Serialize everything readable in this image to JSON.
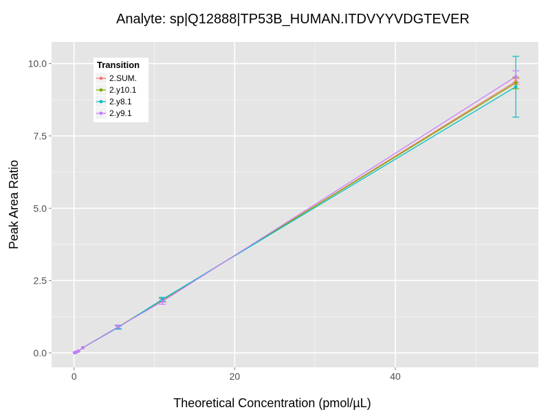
{
  "chart_data": {
    "type": "line",
    "title": "Analyte: sp|Q12888|TP53B_HUMAN.ITDVYYVDGTEVER",
    "xlabel": "Theoretical Concentration (pmol/µL)",
    "ylabel": "Peak Area Ratio",
    "xlim": [
      -2.8,
      57.8
    ],
    "ylim": [
      -0.5,
      10.75
    ],
    "x_ticks": [
      0,
      20,
      40
    ],
    "x_tick_labels": [
      "0",
      "20",
      "40"
    ],
    "y_ticks": [
      0,
      2.5,
      5,
      7.5,
      10
    ],
    "y_tick_labels": [
      "0.0",
      "2.5",
      "5.0",
      "7.5",
      "10.0"
    ],
    "grid": true,
    "legend": {
      "title": "Transition",
      "position": "top-left",
      "entries": [
        "2.SUM.",
        "2.y10.1",
        "2.y8.1",
        "2.y9.1"
      ]
    },
    "x": [
      0.055,
      0.11,
      0.275,
      0.55,
      1.1,
      5.5,
      11,
      55
    ],
    "series": [
      {
        "name": "2.SUM.",
        "color": "#F8766D",
        "values": [
          0.005,
          0.01,
          0.03,
          0.06,
          0.18,
          0.9,
          1.82,
          9.38
        ],
        "errors": [
          0.003,
          0.005,
          0.01,
          0.02,
          0.04,
          0.06,
          0.06,
          0.1
        ]
      },
      {
        "name": "2.y10.1",
        "color": "#7CAE00",
        "values": [
          0.005,
          0.01,
          0.03,
          0.06,
          0.18,
          0.9,
          1.83,
          9.33
        ],
        "errors": [
          0.003,
          0.005,
          0.01,
          0.02,
          0.04,
          0.06,
          0.06,
          0.2
        ]
      },
      {
        "name": "2.y8.1",
        "color": "#00BFC4",
        "values": [
          0.005,
          0.01,
          0.03,
          0.06,
          0.18,
          0.88,
          1.85,
          9.2
        ],
        "errors": [
          0.003,
          0.005,
          0.01,
          0.02,
          0.04,
          0.06,
          0.07,
          1.05
        ]
      },
      {
        "name": "2.y9.1",
        "color": "#C77CFF",
        "values": [
          0.005,
          0.01,
          0.03,
          0.06,
          0.18,
          0.9,
          1.78,
          9.55
        ],
        "errors": [
          0.003,
          0.005,
          0.01,
          0.02,
          0.04,
          0.06,
          0.1,
          0.2
        ]
      }
    ]
  }
}
